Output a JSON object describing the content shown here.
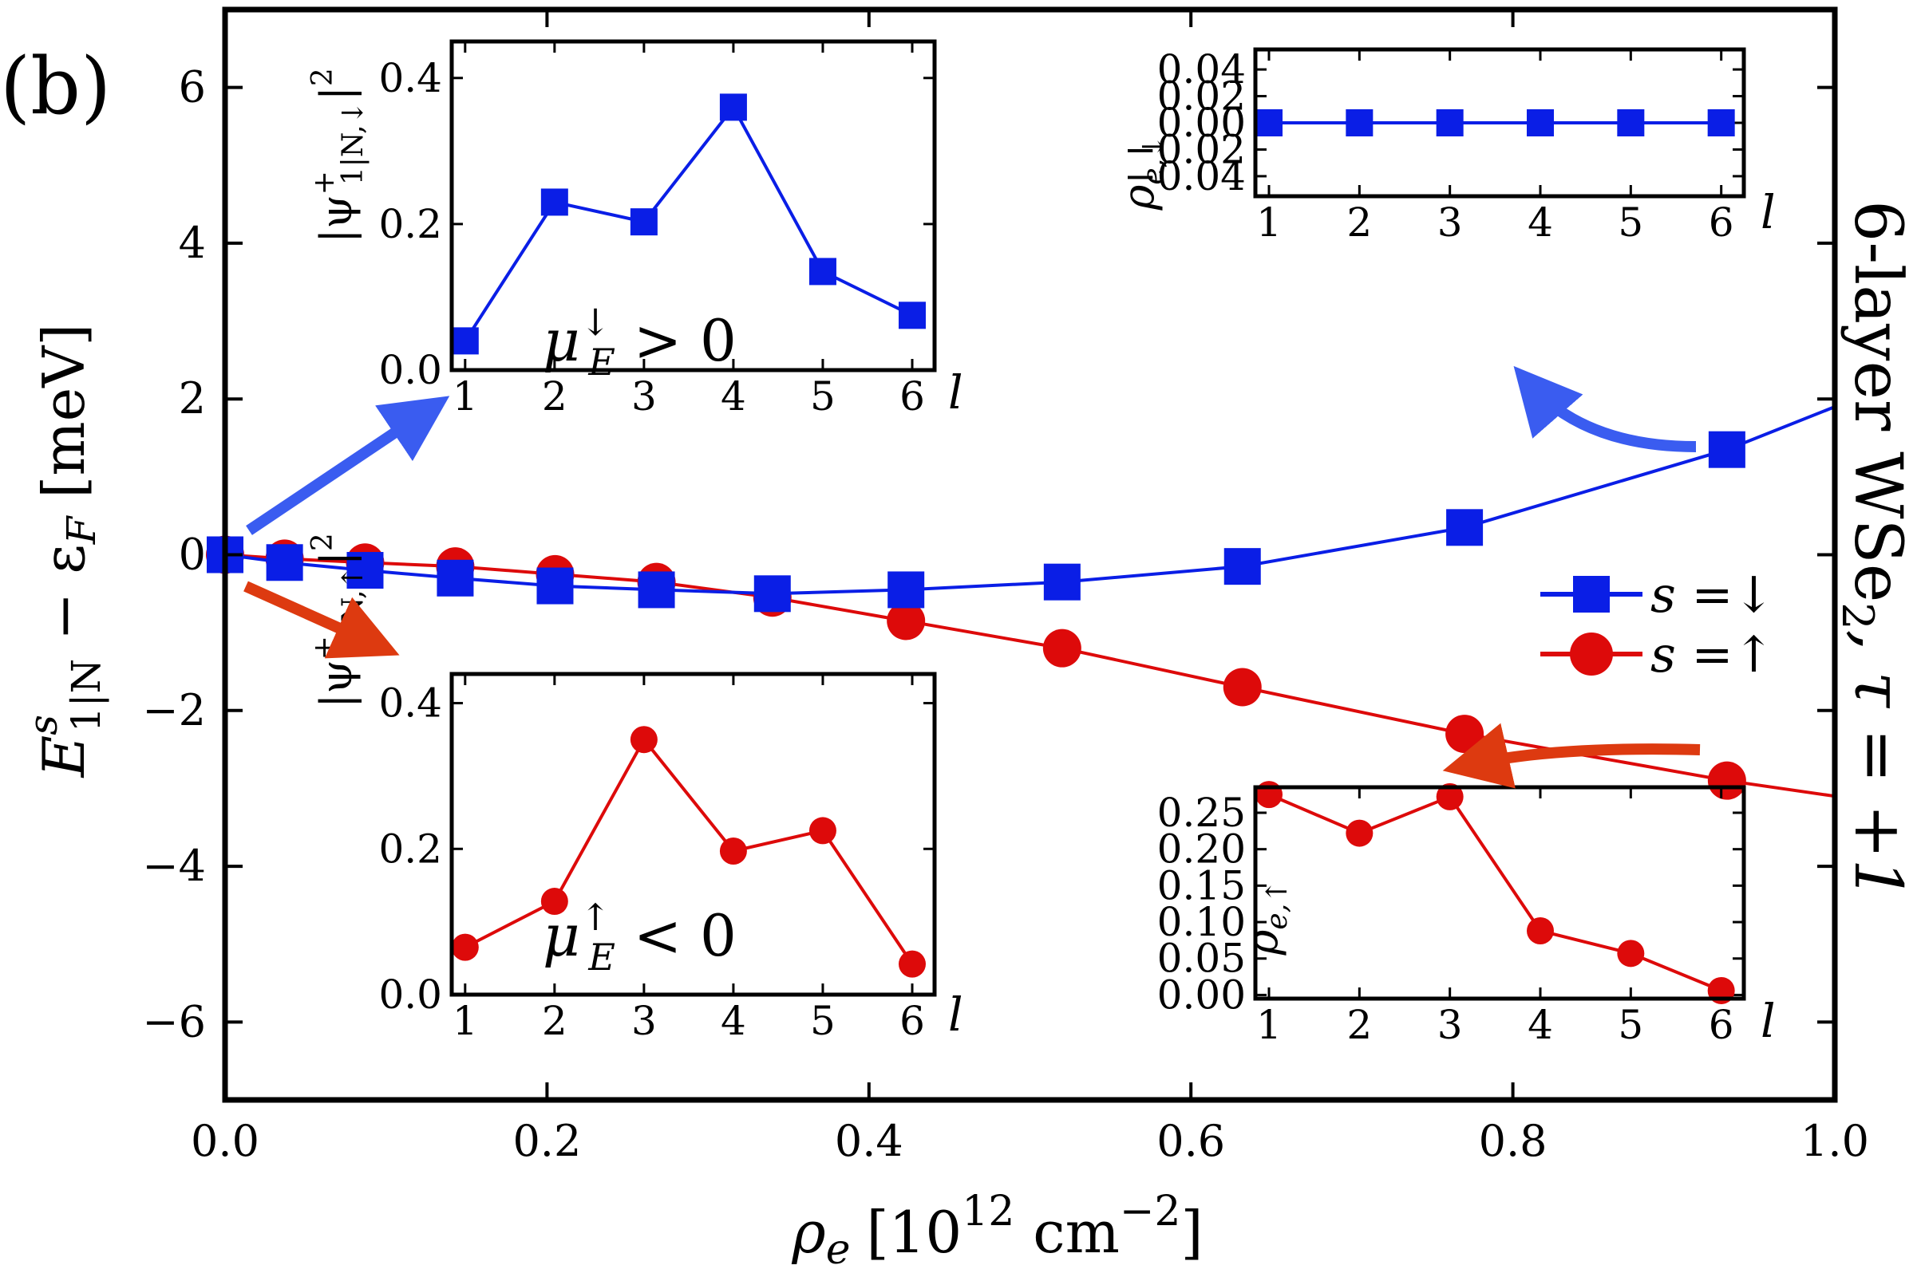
{
  "panel_label": "(b)",
  "side_label": {
    "main": "6-layer WSe",
    "sub": "2",
    "rest": ", τ = +1"
  },
  "colors": {
    "blue": "#0a1ee6",
    "red": "#dd0a0a",
    "arrow_blue": "#3a5cf0",
    "arrow_red": "#dd3a10"
  },
  "chart_data": [
    {
      "id": "main",
      "type": "line",
      "title": "",
      "xlabel": {
        "symbol": "ρ",
        "sub": "e",
        "unit_pre": "[10",
        "unit_exp": "12",
        "unit_mid": " cm",
        "unit_exp2": "−2",
        "unit_post": "]"
      },
      "ylabel": {
        "symbol": "E",
        "sup": "s",
        "sub": "1|N",
        "rest": " − ε",
        "sub2": "F",
        "unit": " [meV]"
      },
      "xlim": [
        0.0,
        1.0
      ],
      "ylim": [
        -7,
        7
      ],
      "xticks": [
        0.0,
        0.2,
        0.4,
        0.6,
        0.8,
        1.0
      ],
      "xtick_labels": [
        "0.0",
        "0.2",
        "0.4",
        "0.6",
        "0.8",
        "1.0"
      ],
      "yticks": [
        -6,
        -4,
        -2,
        0,
        2,
        4,
        6
      ],
      "ytick_labels": [
        "−6",
        "−4",
        "−2",
        "0",
        "2",
        "4",
        "6"
      ],
      "legend_position": "right",
      "series": [
        {
          "name": "s =↓",
          "label_s": "s",
          "label_rest": " =↓",
          "marker": "square",
          "color": "#0a1ee6",
          "x": [
            0.0,
            0.037,
            0.087,
            0.143,
            0.205,
            0.268,
            0.34,
            0.423,
            0.52,
            0.632,
            0.77,
            0.933
          ],
          "y": [
            0.0,
            -0.1,
            -0.2,
            -0.3,
            -0.4,
            -0.45,
            -0.5,
            -0.45,
            -0.35,
            -0.15,
            0.35,
            1.35
          ],
          "curve_x": [
            0.0,
            0.037,
            0.087,
            0.143,
            0.205,
            0.268,
            0.34,
            0.423,
            0.52,
            0.632,
            0.77,
            0.933,
            1.0
          ],
          "curve_y": [
            0.0,
            -0.1,
            -0.2,
            -0.3,
            -0.4,
            -0.45,
            -0.5,
            -0.45,
            -0.35,
            -0.15,
            0.35,
            1.35,
            1.9
          ]
        },
        {
          "name": "s =↑",
          "label_s": "s",
          "label_rest": " =↑",
          "marker": "circle",
          "color": "#dd0a0a",
          "x": [
            0.0,
            0.037,
            0.087,
            0.143,
            0.205,
            0.268,
            0.34,
            0.423,
            0.52,
            0.632,
            0.77,
            0.933
          ],
          "y": [
            0.0,
            -0.05,
            -0.1,
            -0.15,
            -0.25,
            -0.35,
            -0.55,
            -0.85,
            -1.2,
            -1.7,
            -2.3,
            -2.9
          ],
          "curve_x": [
            0.0,
            0.037,
            0.087,
            0.143,
            0.205,
            0.268,
            0.34,
            0.423,
            0.52,
            0.632,
            0.77,
            0.933,
            1.0
          ],
          "curve_y": [
            0.0,
            -0.05,
            -0.1,
            -0.15,
            -0.25,
            -0.35,
            -0.55,
            -0.85,
            -1.2,
            -1.7,
            -2.3,
            -2.9,
            -3.1
          ]
        }
      ]
    },
    {
      "id": "inset-psi-down",
      "type": "line",
      "ylabel": {
        "pre": "|ψ",
        "sup": "+",
        "sub": "1|N,↓",
        "post": "|",
        "exp": "2"
      },
      "xlabel": "l",
      "annotation": {
        "mu": "μ",
        "sup": "↓",
        "sub": "E",
        "rest": " > 0"
      },
      "xlim": [
        0.85,
        6.25
      ],
      "ylim": [
        0.0,
        0.45
      ],
      "xticks": [
        1,
        2,
        3,
        4,
        5,
        6
      ],
      "xtick_labels": [
        "1",
        "2",
        "3",
        "4",
        "5",
        "6"
      ],
      "yticks": [
        0.0,
        0.2,
        0.4
      ],
      "ytick_labels": [
        "0.0",
        "0.2",
        "0.4"
      ],
      "series": [
        {
          "name": "s =↓",
          "marker": "square",
          "color": "#0a1ee6",
          "x": [
            1,
            2,
            3,
            4,
            5,
            6
          ],
          "y": [
            0.04,
            0.23,
            0.203,
            0.36,
            0.135,
            0.075
          ]
        }
      ]
    },
    {
      "id": "inset-rho-down",
      "type": "line",
      "ylabel": {
        "symbol": "ρ",
        "sub": "e,↓"
      },
      "xlabel": "l",
      "xlim": [
        0.85,
        6.25
      ],
      "ylim": [
        -0.055,
        0.055
      ],
      "xticks": [
        1,
        2,
        3,
        4,
        5,
        6
      ],
      "xtick_labels": [
        "1",
        "2",
        "3",
        "4",
        "5",
        "6"
      ],
      "yticks": [
        0.04,
        0.02,
        0.0,
        -0.02,
        -0.04
      ],
      "ytick_labels": [
        "0.04",
        "0.02",
        "0.00",
        "−0.02",
        "−0.04"
      ],
      "series": [
        {
          "name": "s =↓",
          "marker": "square",
          "color": "#0a1ee6",
          "x": [
            1,
            2,
            3,
            4,
            5,
            6
          ],
          "y": [
            0.0,
            0.0,
            0.0,
            0.0,
            0.0,
            0.0
          ]
        }
      ]
    },
    {
      "id": "inset-psi-up",
      "type": "line",
      "ylabel": {
        "pre": "|ψ",
        "sup": "+",
        "sub": "1|N,↑",
        "post": "|",
        "exp": "2"
      },
      "xlabel": "l",
      "annotation": {
        "mu": "μ",
        "sup": "↑",
        "sub": "E",
        "rest": " < 0"
      },
      "xlim": [
        0.85,
        6.25
      ],
      "ylim": [
        0.0,
        0.44
      ],
      "xticks": [
        1,
        2,
        3,
        4,
        5,
        6
      ],
      "xtick_labels": [
        "1",
        "2",
        "3",
        "4",
        "5",
        "6"
      ],
      "yticks": [
        0.0,
        0.2,
        0.4
      ],
      "ytick_labels": [
        "0.0",
        "0.2",
        "0.4"
      ],
      "series": [
        {
          "name": "s =↑",
          "marker": "circle",
          "color": "#dd0a0a",
          "x": [
            1,
            2,
            3,
            4,
            5,
            6
          ],
          "y": [
            0.065,
            0.128,
            0.35,
            0.197,
            0.225,
            0.042
          ]
        }
      ]
    },
    {
      "id": "inset-rho-up",
      "type": "line",
      "ylabel": {
        "symbol": "ρ",
        "sub": "e,↑"
      },
      "xlabel": "l",
      "xlim": [
        0.85,
        6.25
      ],
      "ylim": [
        -0.005,
        0.285
      ],
      "xticks": [
        1,
        2,
        3,
        4,
        5,
        6
      ],
      "xtick_labels": [
        "1",
        "2",
        "3",
        "4",
        "5",
        "6"
      ],
      "yticks": [
        0.25,
        0.2,
        0.15,
        0.1,
        0.05,
        0.0
      ],
      "ytick_labels": [
        "0.25",
        "0.20",
        "0.15",
        "0.10",
        "0.05",
        "0.00"
      ],
      "series": [
        {
          "name": "s =↑",
          "marker": "circle",
          "color": "#dd0a0a",
          "x": [
            1,
            2,
            3,
            4,
            5,
            6
          ],
          "y": [
            0.275,
            0.222,
            0.272,
            0.088,
            0.057,
            0.006
          ]
        }
      ]
    }
  ]
}
